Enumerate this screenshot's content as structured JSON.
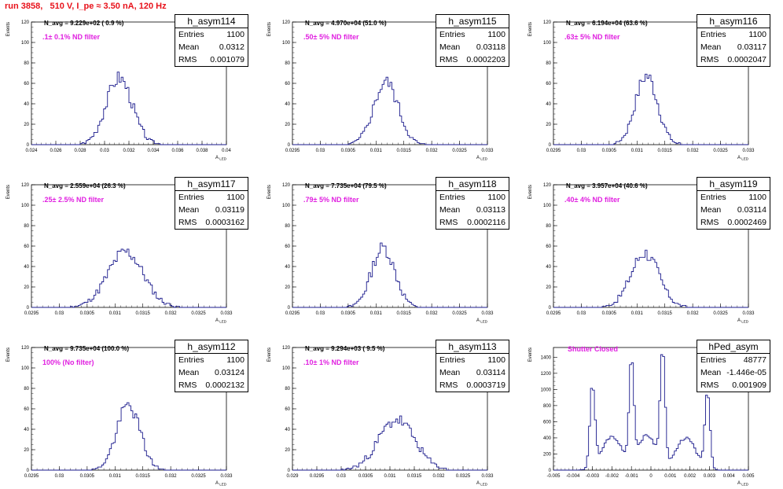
{
  "title": "run 3858,   510 V, I_pe ≈ 3.50 nA, 120 Hz",
  "chart_data": [
    {
      "type": "bar",
      "name": "h_asym114",
      "navg": "N_avg = 9.229e+02 ( 0.9 %)",
      "note": ".1± 0.1% ND filter",
      "stats": {
        "entries": "1100",
        "mean": "0.0312",
        "rms": "0.001079"
      },
      "xlim": [
        0.024,
        0.04
      ],
      "ylim": [
        0,
        120
      ],
      "xticks": [
        "0.024",
        "0.026",
        "0.028",
        "0.03",
        "0.032",
        "0.034",
        "0.036",
        "0.038",
        "0.04"
      ],
      "yticks": [
        "0",
        "20",
        "40",
        "60",
        "80",
        "100",
        "120"
      ],
      "xlabel": "A_LED",
      "ylabel": "Events",
      "mean": 0.0312,
      "sigma": 0.00108,
      "peak": 80,
      "shape": "gauss",
      "seed": 3
    },
    {
      "type": "bar",
      "name": "h_asym115",
      "navg": "N_avg = 4.970e+04 (51.0 %)",
      ".note": "",
      "note": ".50± 5% ND filter",
      "stats": {
        "entries": "1100",
        "mean": "0.03118",
        "rms": "0.0002203"
      },
      "xlim": [
        0.0295,
        0.033
      ],
      "ylim": [
        0,
        120
      ],
      "xticks": [
        "0.0295",
        "0.03",
        "0.0305",
        "0.031",
        "0.0315",
        "0.032",
        "0.0325",
        "0.033"
      ],
      "yticks": [
        "0",
        "20",
        "40",
        "60",
        "80",
        "100",
        "120"
      ],
      "xlabel": "A_LED",
      "ylabel": "Events",
      "mean": 0.03118,
      "sigma": 0.00022,
      "peak": 75,
      "shape": "gauss",
      "seed": 5
    },
    {
      "type": "bar",
      "name": "h_asym116",
      "navg": "N_avg = 6.194e+04 (63.6 %)",
      "note": ".63± 5% ND filter",
      "stats": {
        "entries": "1100",
        "mean": "0.03117",
        "rms": "0.0002047"
      },
      "xlim": [
        0.0295,
        0.033
      ],
      "ylim": [
        0,
        120
      ],
      "xticks": [
        "0.0295",
        "0.03",
        "0.0305",
        "0.031",
        "0.0315",
        "0.032",
        "0.0325",
        "0.033"
      ],
      "yticks": [
        "0",
        "20",
        "40",
        "60",
        "80",
        "100",
        "120"
      ],
      "xlabel": "A_LED",
      "ylabel": "Events",
      "mean": 0.03117,
      "sigma": 0.0002,
      "peak": 82,
      "shape": "gauss",
      "seed": 7
    },
    {
      "type": "bar",
      "name": "h_asym117",
      "navg": "N_avg = 2.559e+04 (26.3 %)",
      "note": ".25± 2.5% ND filter",
      "stats": {
        "entries": "1100",
        "mean": "0.03119",
        "rms": "0.0003162"
      },
      "xlim": [
        0.0295,
        0.033
      ],
      "ylim": [
        0,
        120
      ],
      "xticks": [
        "0.0295",
        "0.03",
        "0.0305",
        "0.031",
        "0.0315",
        "0.032",
        "0.0325",
        "0.033"
      ],
      "yticks": [
        "0",
        "20",
        "40",
        "60",
        "80",
        "100",
        "120"
      ],
      "xlabel": "A_LED",
      "ylabel": "Events",
      "mean": 0.03119,
      "sigma": 0.00032,
      "peak": 66,
      "shape": "gauss",
      "seed": 11
    },
    {
      "type": "bar",
      "name": "h_asym118",
      "navg": "N_avg = 7.735e+04 (79.5 %)",
      "note": ".79± 5% ND filter",
      "stats": {
        "entries": "1100",
        "mean": "0.03113",
        "rms": "0.0002116"
      },
      "xlim": [
        0.0295,
        0.033
      ],
      "ylim": [
        0,
        120
      ],
      "xticks": [
        "0.0295",
        "0.03",
        "0.0305",
        "0.031",
        "0.0315",
        "0.032",
        "0.0325",
        "0.033"
      ],
      "yticks": [
        "0",
        "20",
        "40",
        "60",
        "80",
        "100",
        "120"
      ],
      "xlabel": "A_LED",
      "ylabel": "Events",
      "mean": 0.03113,
      "sigma": 0.00021,
      "peak": 71,
      "shape": "gauss",
      "seed": 13
    },
    {
      "type": "bar",
      "name": "h_asym119",
      "navg": "N_avg = 3.957e+04 (40.6 %)",
      "note": ".40± 4% ND filter",
      "stats": {
        "entries": "1100",
        "mean": "0.03114",
        "rms": "0.0002469"
      },
      "xlim": [
        0.0295,
        0.033
      ],
      "ylim": [
        0,
        120
      ],
      "xticks": [
        "0.0295",
        "0.03",
        "0.0305",
        "0.031",
        "0.0315",
        "0.032",
        "0.0325",
        "0.033"
      ],
      "yticks": [
        "0",
        "20",
        "40",
        "60",
        "80",
        "100",
        "120"
      ],
      "xlabel": "A_LED",
      "ylabel": "Events",
      "mean": 0.03114,
      "sigma": 0.00025,
      "peak": 65,
      "shape": "gauss",
      "seed": 17
    },
    {
      "type": "bar",
      "name": "h_asym112",
      "navg": "N_avg = 9.735e+04 (100.0 %)",
      "note": "100% (No filter)",
      "stats": {
        "entries": "1100",
        "mean": "0.03124",
        "rms": "0.0002132"
      },
      "xlim": [
        0.0295,
        0.033
      ],
      "ylim": [
        0,
        120
      ],
      "xticks": [
        "0.0295",
        "0.03",
        "0.0305",
        "0.031",
        "0.0315",
        "0.032",
        "0.0325",
        "0.033"
      ],
      "yticks": [
        "0",
        "20",
        "40",
        "60",
        "80",
        "100",
        "120"
      ],
      "xlabel": "A_LED",
      "ylabel": "Events",
      "mean": 0.03124,
      "sigma": 0.00021,
      "peak": 77,
      "shape": "gauss",
      "seed": 19
    },
    {
      "type": "bar",
      "name": "h_asym113",
      "navg": "N_avg = 9.294e+03 ( 9.5 %)",
      "note": ".10± 1% ND filter",
      "stats": {
        "entries": "1100",
        "mean": "0.03114",
        "rms": "0.0003719"
      },
      "xlim": [
        0.029,
        0.033
      ],
      "ylim": [
        0,
        120
      ],
      "xticks": [
        "0.029",
        "0.0295",
        "0.03",
        "0.0305",
        "0.031",
        "0.0315",
        "0.032",
        "0.0325",
        "0.033"
      ],
      "yticks": [
        "0",
        "20",
        "40",
        "60",
        "80",
        "100",
        "120"
      ],
      "xlabel": "A_LED",
      "ylabel": "Events",
      "mean": 0.03114,
      "sigma": 0.00037,
      "peak": 60,
      "shape": "gauss",
      "seed": 23
    },
    {
      "type": "bar",
      "name": "hPed_asym",
      "navg": "",
      "note": "Shutter Closed",
      "stats": {
        "entries": "48777",
        "mean": "-1.446e-05",
        "rms": "0.001909"
      },
      "xlim": [
        -0.005,
        0.005
      ],
      "ylim": [
        0,
        1520
      ],
      "xticks": [
        "-0.005",
        "-0.004",
        "-0.003",
        "-0.002",
        "-0.001",
        "0",
        "0.001",
        "0.002",
        "0.003",
        "0.004",
        "0.005"
      ],
      "yticks": [
        "0",
        "200",
        "400",
        "600",
        "800",
        "1000",
        "1200",
        "1400"
      ],
      "xlabel": "A_LED",
      "ylabel": "Events",
      "shape": "multi",
      "peaks": [
        {
          "mu": -0.003,
          "sigma": 0.00013,
          "h": 1020
        },
        {
          "mu": -0.001,
          "sigma": 0.00012,
          "h": 1230
        },
        {
          "mu": 0.0006,
          "sigma": 0.00012,
          "h": 1430
        },
        {
          "mu": 0.0029,
          "sigma": 0.00013,
          "h": 930
        }
      ],
      "valleys": [
        {
          "mu": -0.002,
          "level": 420
        },
        {
          "mu": -0.0002,
          "level": 430
        },
        {
          "mu": 0.0018,
          "level": 400
        }
      ],
      "seed": 29
    }
  ]
}
